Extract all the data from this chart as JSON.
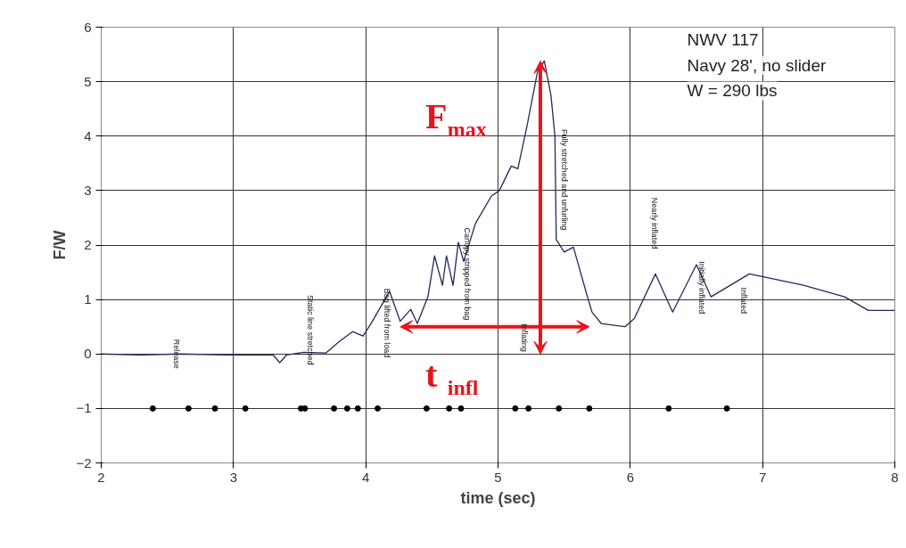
{
  "chart_data": {
    "type": "line",
    "xlabel": "time (sec)",
    "ylabel": "F/W",
    "xlim": [
      2,
      8
    ],
    "xticks": [
      2,
      3,
      4,
      5,
      6,
      7,
      8
    ],
    "ylim": [
      -2,
      6
    ],
    "yticks": [
      -2,
      -1,
      0,
      1,
      2,
      3,
      4,
      5,
      6
    ],
    "grid": true,
    "series": [
      {
        "color": "#1f2a5c",
        "marker": "none",
        "x": [
          2.0,
          2.3,
          2.6,
          3.0,
          3.3,
          3.35,
          3.4,
          3.53,
          3.7,
          3.8,
          3.9,
          3.98,
          4.05,
          4.14,
          4.18,
          4.26,
          4.34,
          4.39,
          4.47,
          4.52,
          4.58,
          4.61,
          4.66,
          4.7,
          4.74,
          4.83,
          4.95,
          5.01,
          5.1,
          5.15,
          5.22,
          5.3,
          5.35,
          5.4,
          5.43,
          5.44,
          5.5,
          5.57,
          5.67,
          5.71,
          5.78,
          5.96,
          6.03,
          6.19,
          6.32,
          6.5,
          6.61,
          6.9,
          7.31,
          7.62,
          7.8,
          8.0
        ],
        "values": [
          0.0,
          -0.02,
          0.0,
          -0.02,
          -0.02,
          -0.16,
          -0.02,
          0.03,
          0.02,
          0.23,
          0.41,
          0.33,
          0.6,
          0.98,
          1.15,
          0.6,
          0.82,
          0.56,
          1.05,
          1.8,
          1.26,
          1.8,
          1.26,
          2.05,
          1.7,
          2.4,
          2.9,
          3.0,
          3.45,
          3.4,
          4.2,
          5.2,
          5.38,
          4.75,
          4.0,
          2.1,
          1.87,
          1.96,
          1.1,
          0.77,
          0.56,
          0.5,
          0.65,
          1.47,
          0.77,
          1.64,
          1.05,
          1.47,
          1.26,
          1.05,
          0.8,
          0.8
        ]
      },
      {
        "type": "scatter",
        "color": "#000000",
        "marker": "circle",
        "x": [
          2.39,
          2.66,
          2.86,
          3.09,
          3.51,
          3.54,
          3.76,
          3.86,
          3.94,
          4.09,
          4.46,
          4.63,
          4.72,
          5.13,
          5.23,
          5.46,
          5.69,
          6.29,
          6.73
        ],
        "values": [
          -1,
          -1,
          -1,
          -1,
          -1,
          -1,
          -1,
          -1,
          -1,
          -1,
          -1,
          -1,
          -1,
          -1,
          -1,
          -1,
          -1,
          -1,
          -1
        ]
      }
    ],
    "annotations": [
      "NWV 117\nNavy 28', no slider\nW = 290 lbs",
      "F$_{max}$",
      "t$_{infl}$",
      "Release",
      "Static line stretched",
      "Bag lifted from load",
      "Canopy stripped from bag",
      "Fully stretched and unfurling",
      "Inflating",
      "Nearly inflated",
      "Initially inflated",
      "Inflated"
    ]
  }
}
